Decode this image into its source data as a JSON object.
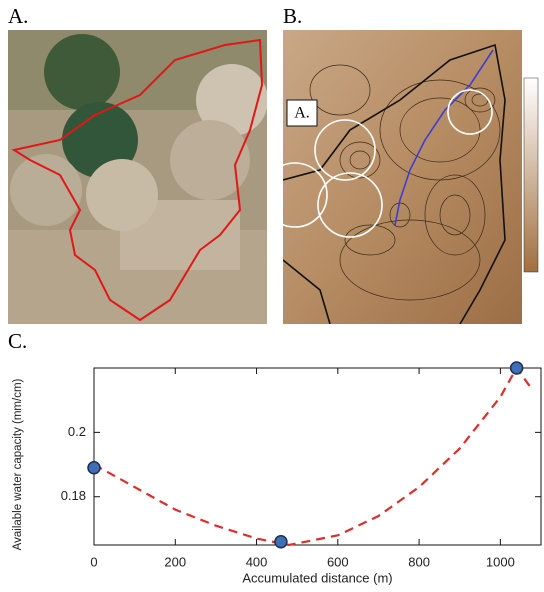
{
  "panels": {
    "a_label": "A.",
    "b_label": "B.",
    "c_label": "C.",
    "map_marker": "A."
  },
  "chart_data": {
    "type": "line",
    "x_label": "Accumulated distance (m)",
    "y_label": "Available water capacity (mm/cm)",
    "xlim": [
      0,
      1100
    ],
    "xticks": [
      0,
      200,
      400,
      600,
      800,
      1000
    ],
    "ylim": [
      0.165,
      0.22
    ],
    "yticks": [
      0.18,
      0.2
    ],
    "grid": false,
    "series": [
      {
        "style": "dashed",
        "color": "#d9302a",
        "x": [
          0,
          100,
          200,
          300,
          400,
          480,
          600,
          700,
          800,
          900,
          1000,
          1040,
          1080
        ],
        "values": [
          0.19,
          0.183,
          0.176,
          0.171,
          0.167,
          0.165,
          0.168,
          0.174,
          0.183,
          0.195,
          0.211,
          0.22,
          0.213
        ]
      },
      {
        "style": "markers",
        "color": "#3f6fb5",
        "x": [
          0,
          460,
          1040
        ],
        "values": [
          0.189,
          0.166,
          0.22
        ]
      }
    ]
  }
}
